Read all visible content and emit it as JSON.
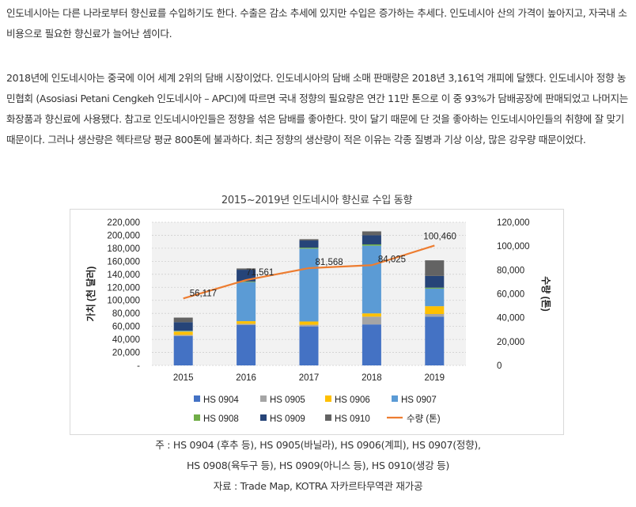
{
  "article": {
    "paragraph1": "인도네시아는 다른 나라로부터 향신료를 수입하기도 한다. 수출은 감소 추세에 있지만 수입은 증가하는 추세다. 인도네시아 산의 가격이 높아지고, 자국내 소비용으로 필요한 향신료가 늘어난 셈이다.",
    "paragraph2": "2018년에 인도네시아는 중국에 이어 세계 2위의 담배 시장이었다. 인도네시아의 담배 소매 판매량은 2018년 3,161억 개피에 달했다. 인도네시아 정향 농민협회 (Asosiasi Petani Cengkeh 인도네시아 – APCI)에 따르면 국내 정향의 필요량은 연간 11만 톤으로 이 중 93%가 담배공장에 판매되었고 나머지는 화장품과 향신료에 사용됐다. 참고로 인도네시아인들은 정향을 섞은 담배를 좋아한다. 맛이 달기 때문에 단 것을 좋아하는 인도네시아인들의 취향에 잘 맞기 때문이다. 그러나 생산량은 헥타르당 평균 800톤에 불과하다. 최근 정향의 생산량이 적은 이유는 각종 질병과 기상 이상, 많은 강우량 때문이었다."
  },
  "chart_data": {
    "type": "bar",
    "stacked": true,
    "title": "2015~2019년 인도네시아 향신료 수입 동향",
    "categories": [
      "2015",
      "2016",
      "2017",
      "2018",
      "2019"
    ],
    "ylabel": "가치 (천 달러)",
    "y2label": "수량 (톤)",
    "ylim": [
      0,
      220000
    ],
    "y2lim": [
      0,
      120000
    ],
    "yticks": [
      "-",
      "20,000",
      "40,000",
      "60,000",
      "80,000",
      "100,000",
      "120,000",
      "140,000",
      "160,000",
      "180,000",
      "200,000",
      "220,000"
    ],
    "y2ticks": [
      "0",
      "20,000",
      "40,000",
      "60,000",
      "80,000",
      "100,000",
      "120,000"
    ],
    "grid": true,
    "legend_position": "bottom",
    "series": [
      {
        "name": "HS 0904",
        "color": "#4472c4",
        "values": [
          45000,
          62000,
          60000,
          63000,
          75000
        ]
      },
      {
        "name": "HS 0905",
        "color": "#a5a5a5",
        "values": [
          2000,
          2000,
          2500,
          12000,
          4000
        ]
      },
      {
        "name": "HS 0906",
        "color": "#ffc000",
        "values": [
          5000,
          4000,
          5000,
          5000,
          12000
        ]
      },
      {
        "name": "HS 0907",
        "color": "#5b9bd5",
        "values": [
          1000,
          60000,
          112000,
          104000,
          27000
        ]
      },
      {
        "name": "HS 0908",
        "color": "#70ad47",
        "values": [
          500,
          1000,
          1500,
          2000,
          1500
        ]
      },
      {
        "name": "HS 0909",
        "color": "#264478",
        "values": [
          13000,
          18000,
          11000,
          14000,
          18000
        ]
      },
      {
        "name": "HS 0910",
        "color": "#636363",
        "values": [
          7000,
          2000,
          2000,
          6000,
          24000
        ]
      }
    ],
    "line": {
      "name": "수량 (톤)",
      "color": "#ed7d31",
      "axis": "right",
      "values": [
        56117,
        71561,
        81568,
        84025,
        100460
      ],
      "labels": [
        "56,117",
        "71,561",
        "81,568",
        "84,025",
        "100,460"
      ]
    }
  },
  "captions": {
    "note1": "주 : HS 0904 (후추 등), HS 0905(바닐라), HS 0906(계피), HS 0907(정향),",
    "note2": "HS 0908(육두구 등), HS 0909(아니스 등), HS 0910(생강 등)",
    "source": "자료 : Trade Map, KOTRA 자카르타무역관 재가공"
  }
}
